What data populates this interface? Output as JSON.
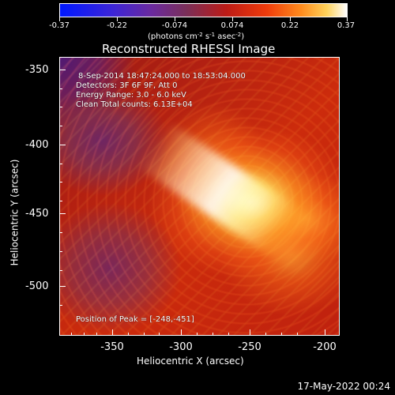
{
  "colorbar": {
    "labels": [
      "-0.37",
      "-0.22",
      "-0.074",
      "0.074",
      "0.22",
      "0.37"
    ],
    "units_prefix": "(photons cm",
    "units_exp1": "-2",
    "units_mid": " s",
    "units_exp2": "-1",
    "units_mid2": " asec",
    "units_exp3": "-2",
    "units_suffix": ")"
  },
  "plot": {
    "title": "Reconstructed RHESSI Image",
    "x_axis_title": "Heliocentric X (arcsec)",
    "y_axis_title": "Heliocentric Y (arcsec)",
    "x_ticks": [
      "-350",
      "-300",
      "-250",
      "-200"
    ],
    "y_ticks": [
      "-350",
      "-400",
      "-450",
      "-500"
    ],
    "info": {
      "time_range": "8-Sep-2014 18:47:24.000 to 18:53:04.000",
      "detectors": "Detectors: 3F 6F 9F, Att 0",
      "energy": "Energy Range: 3.0 - 6.0 keV",
      "clean": "Clean     Total counts: 6.13E+04",
      "peak": "Position of Peak = [-248,-451]"
    }
  },
  "footer": {
    "date": "17-May-2022 00:24"
  },
  "colors": {
    "background": "#000000",
    "foreground": "#ffffff"
  }
}
